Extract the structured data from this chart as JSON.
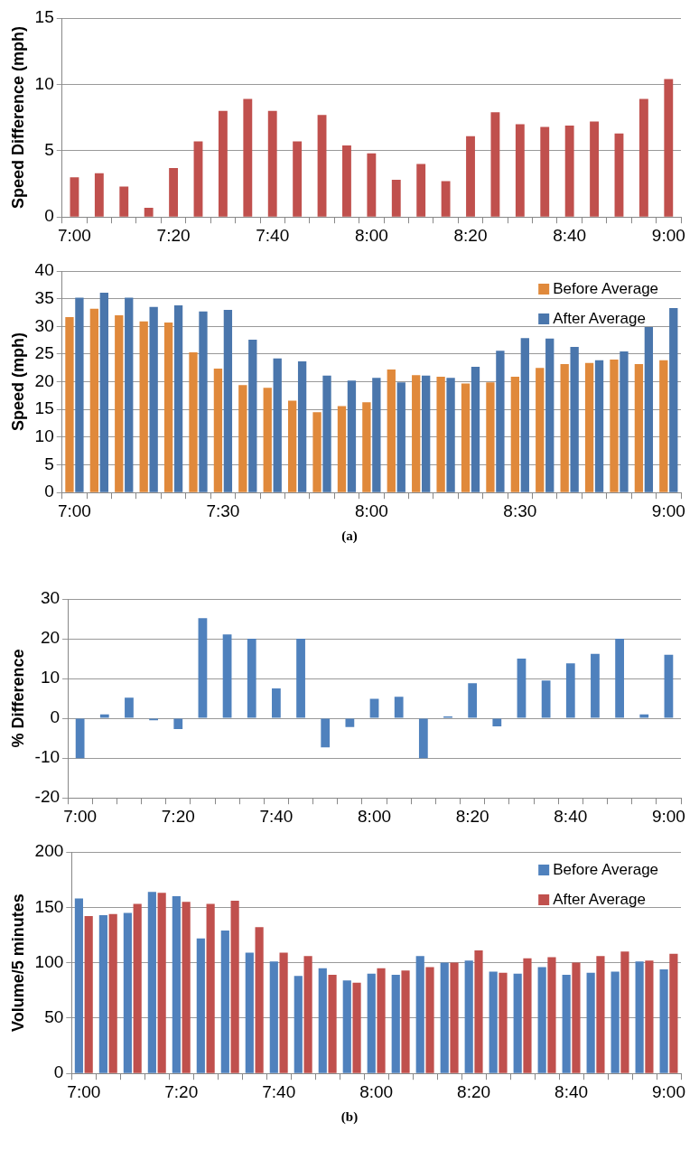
{
  "chart_data": [
    {
      "type": "bar",
      "ylabel": "Speed Difference (mph)",
      "categories": [
        "7:00",
        null,
        null,
        null,
        "7:20",
        null,
        null,
        null,
        "7:40",
        null,
        null,
        null,
        "8:00",
        null,
        null,
        null,
        "8:20",
        null,
        null,
        null,
        "8:40",
        null,
        null,
        null,
        "9:00"
      ],
      "series": [
        {
          "color": "#c0504d",
          "values": [
            3.0,
            3.3,
            2.3,
            0.7,
            3.7,
            5.7,
            8.0,
            8.9,
            8.0,
            5.7,
            7.7,
            5.4,
            4.8,
            2.8,
            4.0,
            2.7,
            6.1,
            7.9,
            7.0,
            6.8,
            6.9,
            7.2,
            6.3,
            8.9,
            10.4
          ]
        }
      ],
      "ylim": [
        0,
        15
      ],
      "yticks": [
        0,
        5,
        10,
        15
      ],
      "grid": "y",
      "legend": false
    },
    {
      "type": "bar",
      "ylabel": "Speed (mph)",
      "categories": [
        "7:00",
        null,
        null,
        null,
        null,
        null,
        "7:30",
        null,
        null,
        null,
        null,
        null,
        "8:00",
        null,
        null,
        null,
        null,
        null,
        "8:30",
        null,
        null,
        null,
        null,
        null,
        "9:00"
      ],
      "series": [
        {
          "name": "Before Average",
          "color": "#e0893b",
          "values": [
            31.7,
            33.2,
            32.0,
            30.9,
            30.7,
            25.3,
            22.4,
            19.4,
            18.9,
            16.6,
            14.5,
            15.6,
            16.3,
            22.2,
            21.2,
            20.9,
            19.7,
            19.9,
            20.9,
            22.5,
            23.2,
            23.4,
            24.0,
            23.2,
            23.9
          ]
        },
        {
          "name": "After Average",
          "color": "#4a76ac",
          "values": [
            35.2,
            36.1,
            35.2,
            33.5,
            33.8,
            32.7,
            33.0,
            27.6,
            24.2,
            23.7,
            21.1,
            20.2,
            20.7,
            19.9,
            21.1,
            20.7,
            22.7,
            25.6,
            27.9,
            27.8,
            26.3,
            23.9,
            25.5,
            29.9,
            33.3
          ]
        }
      ],
      "ylim": [
        0,
        40
      ],
      "yticks": [
        0,
        5,
        10,
        15,
        20,
        25,
        30,
        35,
        40
      ],
      "grid": "y",
      "legend": "top right",
      "annotations": [
        "(a)"
      ]
    },
    {
      "type": "bar",
      "ylabel": "% Difference",
      "categories": [
        "7:00",
        null,
        null,
        null,
        "7:20",
        null,
        null,
        null,
        "7:40",
        null,
        null,
        null,
        "8:00",
        null,
        null,
        null,
        "8:20",
        null,
        null,
        null,
        "8:40",
        null,
        null,
        null,
        "9:00"
      ],
      "series": [
        {
          "color": "#4f81bd",
          "values": [
            -10,
            1,
            5.2,
            -0.5,
            -2.7,
            25.2,
            21.1,
            20,
            7.5,
            20,
            -7.3,
            -2.2,
            4.9,
            5.4,
            -10,
            0.5,
            8.8,
            -2,
            15,
            9.5,
            13.8,
            16.2,
            20,
            1,
            16
          ]
        }
      ],
      "ylim": [
        -20,
        30
      ],
      "yticks": [
        -20,
        -10,
        0,
        10,
        20,
        30
      ],
      "grid": "y",
      "legend": false
    },
    {
      "type": "bar",
      "ylabel": "Volume/5 minutes",
      "categories": [
        "7:00",
        null,
        null,
        null,
        "7:20",
        null,
        null,
        null,
        "7:40",
        null,
        null,
        null,
        "8:00",
        null,
        null,
        null,
        "8:20",
        null,
        null,
        null,
        "8:40",
        null,
        null,
        null,
        "9:00"
      ],
      "series": [
        {
          "name": "Before Average",
          "color": "#4f81bd",
          "values": [
            158,
            143,
            145,
            164,
            160,
            122,
            129,
            109,
            101,
            88,
            95,
            84,
            90,
            89,
            106,
            100,
            102,
            92,
            90,
            96,
            89,
            91,
            92,
            101,
            94
          ]
        },
        {
          "name": "After Average",
          "color": "#c0504d",
          "values": [
            142,
            144,
            153,
            163,
            155,
            153,
            156,
            132,
            109,
            106,
            89,
            82,
            95,
            93,
            96,
            100,
            111,
            91,
            104,
            105,
            100,
            106,
            110,
            102,
            108
          ]
        }
      ],
      "ylim": [
        0,
        200
      ],
      "yticks": [
        0,
        50,
        100,
        150,
        200
      ],
      "grid": "y",
      "legend": "top right",
      "annotations": [
        "(b)"
      ]
    }
  ]
}
